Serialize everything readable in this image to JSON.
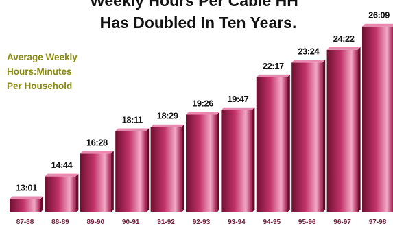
{
  "chart_data": {
    "type": "bar",
    "title_lines": [
      "Weekly Hours Per Cable HH",
      "Has Doubled In Ten Years."
    ],
    "ylabel_lines": [
      "Average Weekly",
      "Hours:Minutes",
      "Per Household"
    ],
    "xlabel": "",
    "categories": [
      "87-88",
      "88-89",
      "89-90",
      "90-91",
      "91-92",
      "92-93",
      "93-94",
      "94-95",
      "95-96",
      "96-97",
      "97-98"
    ],
    "value_labels": [
      "13:01",
      "14:44",
      "16:28",
      "18:11",
      "18:29",
      "19:26",
      "19:47",
      "22:17",
      "23:24",
      "24:22",
      "26:09"
    ],
    "values": [
      13.017,
      14.733,
      16.467,
      18.183,
      18.483,
      19.433,
      19.783,
      22.283,
      23.4,
      24.367,
      26.15
    ],
    "unit": "hours per week",
    "ylim": [
      12,
      26.5
    ],
    "grid": false,
    "legend": "none",
    "colors": {
      "bar_dark": "#6e1030",
      "bar_mid": "#c2336a",
      "bar_light": "#f2a9c6",
      "bar_top": "#e88ab0",
      "ylabel_text": "#8a8a10",
      "category_text": "#6b1f3a"
    }
  }
}
